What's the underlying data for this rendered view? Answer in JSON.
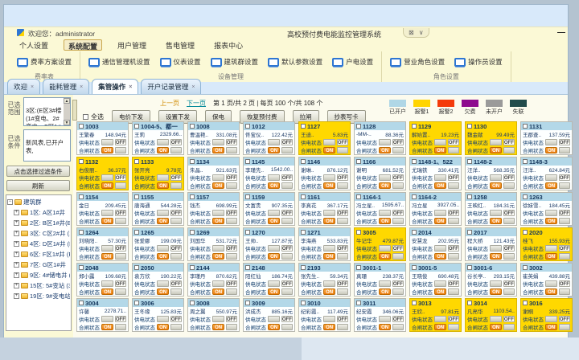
{
  "window": {
    "welcome": "欢迎您：administrator",
    "title": "高校预付费电能监控管理系统",
    "controls": {
      "toggle": "⊠",
      "collapse": "∨"
    },
    "minimize": "—"
  },
  "menu": {
    "items": [
      "个人设置",
      "系统配置",
      "用户管理",
      "售电管理",
      "报表中心"
    ],
    "active": "系统配置"
  },
  "ribbon": {
    "groups": [
      {
        "label": "费率表",
        "buttons": [
          "费率方案设置"
        ]
      },
      {
        "label": "设备管理",
        "buttons": [
          "通信管理机设置",
          "仪表设置",
          "建筑群设置",
          "默认参数设置",
          "户电设置"
        ]
      },
      {
        "label": "角色设置",
        "buttons": [
          "营业角色设置",
          "操作员设置"
        ]
      }
    ]
  },
  "tabs": {
    "items": [
      "欢迎",
      "能耗管理",
      "集管操作",
      "开户记录管理"
    ],
    "active": "集管操作",
    "close_glyph": "×"
  },
  "sidebar": {
    "range_label": "已选\n范围",
    "range_text": "3区:(E区3#楼\n(1#变电、2#\n变电、C区1#",
    "cond_label": "已选\n条件",
    "cond_text": "新风表,已开户\n表,",
    "filter_button": "点击选择过滤条件",
    "refresh_button": "刷新",
    "tree": {
      "root": "建筑群",
      "items": [
        "1区: A区1#井",
        "2区: B区1#井(B区",
        "3区: C区2#井 (1",
        "4区: D区1#井 (D",
        "6区: F区1#井 (F",
        "7区: G区1#井",
        "9区: 4#储电井 (4",
        "15区: 5#变站 (3#",
        "19区: 9#变电站 ("
      ]
    }
  },
  "toolbar": {
    "prev": "上一页",
    "next": "下一页",
    "page_info": "第 1 页/共 2 页 | 每页 100 个/共 108 个",
    "select_all": "全选",
    "buttons": [
      "电价下发",
      "设置下发",
      "保电",
      "恢复预付费",
      "拉闸",
      "抄表写卡"
    ]
  },
  "legend": {
    "items": [
      {
        "label": "已开户",
        "color": "#b0d7e6"
      },
      {
        "label": "报警1",
        "color": "#ffd400"
      },
      {
        "label": "报警2",
        "color": "#f43b0a"
      },
      {
        "label": "欠费",
        "color": "#8e0b8e"
      },
      {
        "label": "未开户",
        "color": "#9a9a9a"
      },
      {
        "label": "失联",
        "color": "#224c4c"
      }
    ]
  },
  "card_labels": {
    "supply": "供电状态",
    "close_sw": "合闸状态",
    "on": "ON",
    "off": "OFF"
  },
  "cards": [
    [
      "1003",
      "王繁春",
      "148.94元",
      0
    ],
    [
      "1004-5、都一",
      "王莉",
      "2329.66..",
      0
    ],
    [
      "1008",
      "曹温艳..",
      "331.08元",
      0
    ],
    [
      "1012",
      "佟宝仪..",
      "122.42元",
      0
    ],
    [
      "1127",
      "王迪..",
      "5.83元",
      1
    ],
    [
      "1128",
      "-MM-..",
      "88.36元",
      0
    ],
    [
      "1129",
      "解始置..",
      "19.23元",
      1
    ],
    [
      "1130",
      "魏金献",
      "99.49元",
      1
    ],
    [
      "1131",
      "王郡查..",
      "137.59元",
      0
    ],
    [
      "1132",
      "右俊丽..",
      "36.37元",
      1
    ],
    [
      "1133",
      "张开亮",
      "9.78元",
      1
    ],
    [
      "1134",
      "朱晶..",
      "921.63元",
      0
    ],
    [
      "1145",
      "李瑾先..",
      "1542.00..",
      0
    ],
    [
      "1146",
      "谢琳..",
      "876.12元",
      0
    ],
    [
      "1166",
      "谢明",
      "681.52元",
      0
    ],
    [
      "1148-1、522",
      "尤瑞铁",
      "330.41元",
      0
    ],
    [
      "1148-2",
      "汪洋..",
      "568.35元",
      0
    ],
    [
      "1148-3",
      "汪洋..",
      "624.84元",
      0
    ],
    [
      "1154",
      "金日",
      "209.45元",
      0
    ],
    [
      "1155",
      "唐海通",
      "544.28元",
      0
    ],
    [
      "1157",
      "钱杰",
      "698.99元",
      0
    ],
    [
      "1159",
      "文富贵",
      "907.35元",
      0
    ],
    [
      "1161",
      "李真花",
      "367.17元",
      0
    ],
    [
      "1164-1",
      "冯立星..",
      "1595.67..",
      0
    ],
    [
      "1164-2",
      "冯立星",
      "3927.05..",
      0
    ],
    [
      "1258",
      "王映红..",
      "184.31元",
      0
    ],
    [
      "1263",
      "徐妹雪..",
      "184.45元",
      0
    ],
    [
      "1264",
      "刘晓阳..",
      "57.30元",
      0
    ],
    [
      "1265",
      "张爱娜",
      "199.09元",
      0
    ],
    [
      "1269",
      "刘国华",
      "531.72元",
      0
    ],
    [
      "1270",
      "王帅..",
      "127.87元",
      0
    ],
    [
      "1271",
      "李海燕",
      "533.83元",
      0
    ],
    [
      "3005",
      "牛记华",
      "479.87元",
      1
    ],
    [
      "2014",
      "安慧龙",
      "202.95元",
      0
    ],
    [
      "2017",
      "程大桥",
      "121.43元",
      0
    ],
    [
      "2020",
      "桂飞",
      "155.93元",
      1
    ],
    [
      "2048",
      "郑小露",
      "109.68元",
      0
    ],
    [
      "2050",
      "袁方欣",
      "190.22元",
      0
    ],
    [
      "2144",
      "李瑾丹",
      "870.62元",
      0
    ],
    [
      "2148",
      "阳红仙",
      "186.74元",
      0
    ],
    [
      "2193",
      "张先生..",
      "59.34元",
      0
    ],
    [
      "3001-1",
      "真珊",
      "238.37元",
      0
    ],
    [
      "3001-5",
      "王晓俊",
      "690.48元",
      0
    ],
    [
      "3001-6",
      "谷长亭..",
      "293.15元",
      0
    ],
    [
      "3002",
      "崔英娟",
      "439.88元",
      0
    ],
    [
      "3004",
      "许馨",
      "2278.71..",
      0
    ],
    [
      "3006",
      "王冬缘",
      "125.83元",
      0
    ],
    [
      "3008",
      "周之翼",
      "550.97元",
      0
    ],
    [
      "3009",
      "洪成杰",
      "885.16元",
      0
    ],
    [
      "3010",
      "纪彩霞..",
      "117.49元",
      0
    ],
    [
      "3011",
      "纪安霞",
      "346.06元",
      0
    ],
    [
      "3013",
      "王欣..",
      "97.81元",
      1
    ],
    [
      "3014",
      "凡亮华",
      "1103.54..",
      1
    ],
    [
      "3016",
      "谢桐",
      "339.25元",
      1
    ]
  ]
}
